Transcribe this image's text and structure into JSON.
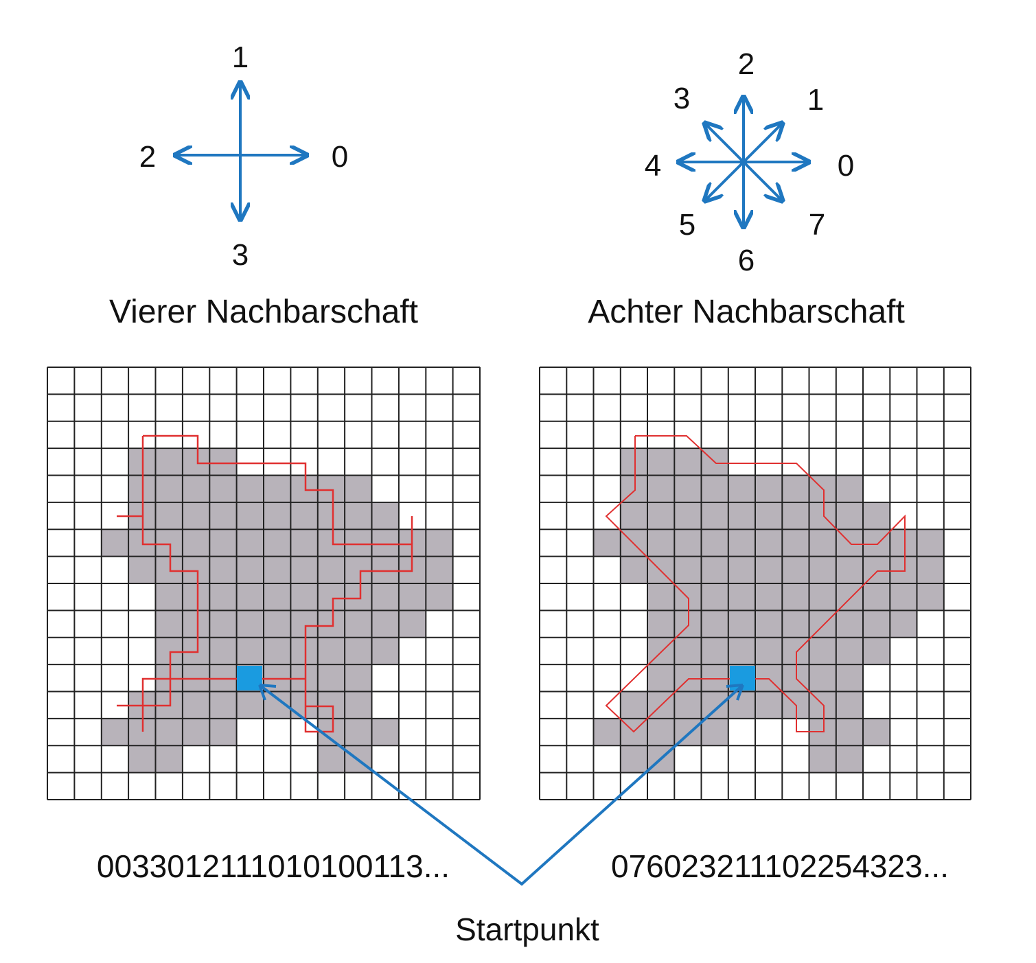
{
  "four_neighborhood": {
    "title": "Vierer Nachbarschaft",
    "directions": [
      "0",
      "1",
      "2",
      "3"
    ],
    "chain_code": "00330121110101001 13...",
    "chain_code_text": "003301211101010011 3..."
  },
  "eight_neighborhood": {
    "title": "Achter Nachbarschaft",
    "directions": [
      "0",
      "1",
      "2",
      "3",
      "4",
      "5",
      "6",
      "7"
    ],
    "chain_code_text": "076023211102254323..."
  },
  "start_label": "Startpunkt",
  "colors": {
    "arrow_blue": "#1f77c0",
    "start_cell": "#1a9be0",
    "region_gray": "#b8b3ba",
    "contour_red": "#e03030",
    "grid_line": "#222222"
  }
}
